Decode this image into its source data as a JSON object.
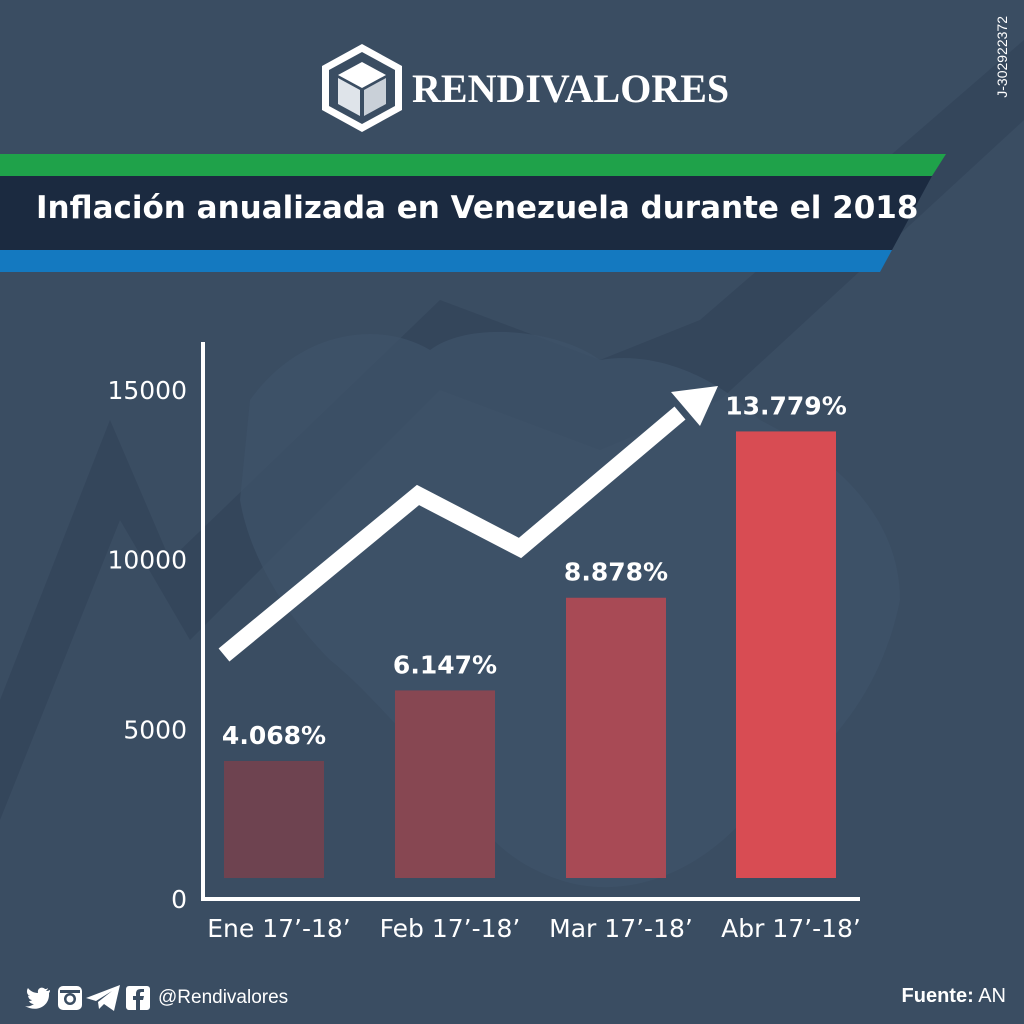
{
  "brand": {
    "name": "RENDIVALORES",
    "registry_id": "J-302922372"
  },
  "banner": {
    "title": "Inflación anualizada en Venezuela durante el 2018",
    "stripe_top_color": "#1fa24a",
    "stripe_bottom_color": "#1479c0",
    "band_color": "#1b2a40"
  },
  "chart_data": {
    "type": "bar",
    "categories": [
      "Ene 17’-18’",
      "Feb 17’-18’",
      "Mar 17’-18’",
      "Abr 17’-18’"
    ],
    "values": [
      4068,
      6147,
      8878,
      13779
    ],
    "data_labels": [
      "4.068%",
      "6.147%",
      "8.878%",
      "13.779%"
    ],
    "bar_colors": [
      "#6e4350",
      "#874752",
      "#a84a55",
      "#d84c53"
    ],
    "ylim": [
      0,
      15000
    ],
    "yticks": [
      0,
      5000,
      10000,
      15000
    ],
    "ytick_labels": [
      "0",
      "5000",
      "10000",
      "15000"
    ],
    "title": "",
    "xlabel": "",
    "ylabel": "",
    "grid": false,
    "annotation": "upward-trend-arrow"
  },
  "footer": {
    "social_icons": [
      "twitter-icon",
      "instagram-icon",
      "telegram-icon",
      "facebook-icon"
    ],
    "handle": "@Rendivalores",
    "source_label": "Fuente:",
    "source_value": "AN"
  }
}
